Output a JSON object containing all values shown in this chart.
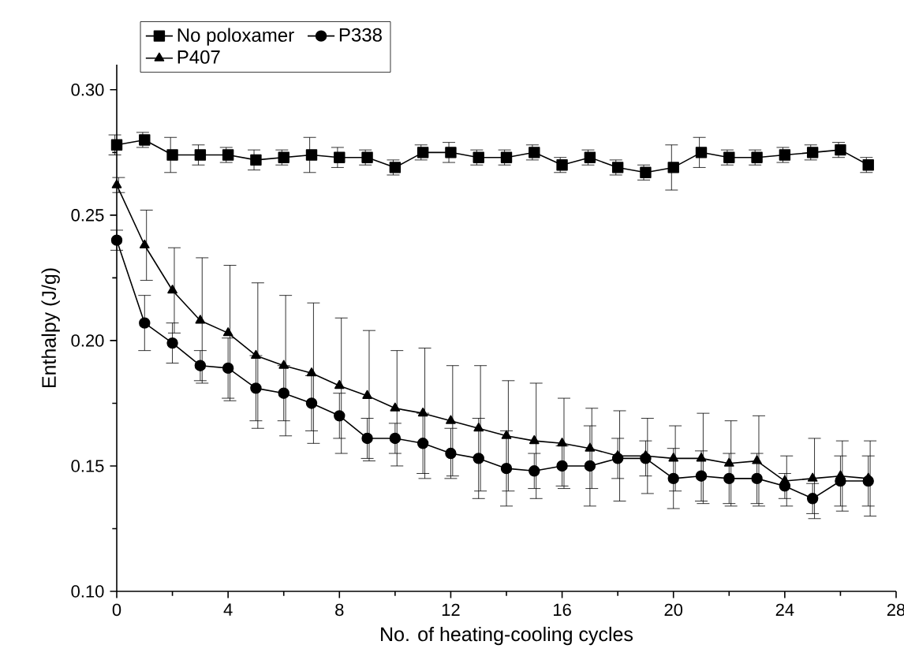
{
  "chart_data": {
    "type": "line",
    "xlabel": "No. of heating-cooling cycles",
    "ylabel": "Enthalpy (J/g)",
    "x": [
      0,
      1,
      2,
      3,
      4,
      5,
      6,
      7,
      8,
      9,
      10,
      11,
      12,
      13,
      14,
      15,
      16,
      17,
      18,
      19,
      20,
      21,
      22,
      23,
      24,
      25,
      26,
      27
    ],
    "xlim": [
      0,
      28
    ],
    "xticks": [
      0,
      4,
      8,
      12,
      16,
      20,
      24,
      28
    ],
    "ylim": [
      0.1,
      0.31
    ],
    "yticks": [
      {
        "value": 0.1,
        "label": "0.10"
      },
      {
        "value": 0.15,
        "label": "0.15"
      },
      {
        "value": 0.2,
        "label": "0.20"
      },
      {
        "value": 0.25,
        "label": "0.25"
      },
      {
        "value": 0.3,
        "label": "0.30"
      }
    ],
    "grid": false,
    "legend": "top left",
    "line_style": "solid",
    "series": [
      {
        "name": "No poloxamer",
        "color": "#000000",
        "marker": "square",
        "values": [
          0.278,
          0.28,
          0.274,
          0.274,
          0.274,
          0.272,
          0.273,
          0.274,
          0.273,
          0.273,
          0.269,
          0.275,
          0.275,
          0.273,
          0.273,
          0.275,
          0.27,
          0.273,
          0.269,
          0.267,
          0.269,
          0.275,
          0.273,
          0.273,
          0.274,
          0.275,
          0.276,
          0.27
        ],
        "errors": [
          0.004,
          0.003,
          0.007,
          0.004,
          0.003,
          0.004,
          0.003,
          0.007,
          0.004,
          0.003,
          0.003,
          0.003,
          0.004,
          0.003,
          0.003,
          0.003,
          0.003,
          0.003,
          0.003,
          0.003,
          0.009,
          0.006,
          0.003,
          0.003,
          0.003,
          0.003,
          0.003,
          0.003
        ]
      },
      {
        "name": "P338",
        "color": "#000000",
        "marker": "circle",
        "values": [
          0.24,
          0.207,
          0.199,
          0.19,
          0.189,
          0.181,
          0.179,
          0.175,
          0.17,
          0.161,
          0.161,
          0.159,
          0.155,
          0.153,
          0.149,
          0.148,
          0.15,
          0.15,
          0.153,
          0.153,
          0.145,
          0.146,
          0.145,
          0.145,
          0.142,
          0.137,
          0.144,
          0.144
        ],
        "errors": [
          0.004,
          0.011,
          0.008,
          0.006,
          0.012,
          0.013,
          0.011,
          0.011,
          0.009,
          0.008,
          0.006,
          0.012,
          0.01,
          0.016,
          0.015,
          0.007,
          0.008,
          0.016,
          0.008,
          0.007,
          0.012,
          0.01,
          0.01,
          0.01,
          0.005,
          0.006,
          0.01,
          0.01
        ]
      },
      {
        "name": "P407",
        "color": "#000000",
        "marker": "triangle",
        "values": [
          0.262,
          0.238,
          0.22,
          0.208,
          0.203,
          0.194,
          0.19,
          0.187,
          0.182,
          0.178,
          0.173,
          0.171,
          0.168,
          0.165,
          0.162,
          0.16,
          0.159,
          0.157,
          0.154,
          0.154,
          0.153,
          0.153,
          0.151,
          0.152,
          0.144,
          0.145,
          0.146,
          0.145
        ],
        "errors": [
          0.003,
          0.014,
          0.017,
          0.025,
          0.027,
          0.029,
          0.028,
          0.028,
          0.027,
          0.026,
          0.023,
          0.026,
          0.022,
          0.025,
          0.022,
          0.023,
          0.018,
          0.016,
          0.018,
          0.015,
          0.013,
          0.018,
          0.017,
          0.018,
          0.01,
          0.016,
          0.014,
          0.015
        ]
      }
    ]
  }
}
